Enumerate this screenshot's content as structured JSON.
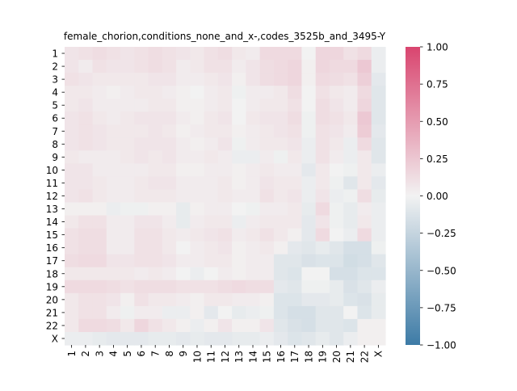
{
  "chart_data": {
    "type": "heatmap",
    "title": "female_chorion,conditions_none_and_x-,codes_3525b_and_3495-Y",
    "xlabel": "",
    "ylabel": "",
    "labels": [
      "1",
      "2",
      "3",
      "4",
      "5",
      "6",
      "7",
      "8",
      "9",
      "10",
      "11",
      "12",
      "13",
      "14",
      "15",
      "16",
      "17",
      "18",
      "19",
      "20",
      "21",
      "22",
      "X"
    ],
    "colorbar": {
      "vmin": -1.0,
      "vmax": 1.0,
      "ticks": [
        "1.00",
        "0.75",
        "0.50",
        "0.25",
        "0.00",
        "−0.25",
        "−0.50",
        "−0.75",
        "−1.00"
      ],
      "tick_values": [
        1.0,
        0.75,
        0.5,
        0.25,
        0.0,
        -0.25,
        -0.5,
        -0.75,
        -1.0
      ],
      "color_low": "#3d7ba6",
      "color_mid": "#f2f2f2",
      "color_high": "#d9456f"
    },
    "values": [
      [
        0.08,
        0.1,
        0.12,
        0.1,
        0.08,
        0.1,
        0.12,
        0.1,
        0.08,
        0.06,
        0.1,
        0.12,
        0.06,
        0.04,
        0.14,
        0.14,
        0.14,
        0.0,
        0.16,
        0.16,
        0.1,
        0.14,
        -0.04
      ],
      [
        0.08,
        0.04,
        0.1,
        0.08,
        0.08,
        0.1,
        0.12,
        0.1,
        0.04,
        0.06,
        0.1,
        0.1,
        0.04,
        0.08,
        0.12,
        0.14,
        0.16,
        0.02,
        0.16,
        0.14,
        0.14,
        0.24,
        -0.04
      ],
      [
        0.1,
        0.08,
        0.06,
        0.06,
        0.06,
        0.06,
        0.08,
        0.08,
        0.04,
        0.04,
        0.06,
        0.08,
        0.02,
        0.08,
        0.12,
        0.14,
        0.16,
        0.02,
        0.14,
        0.12,
        0.1,
        0.2,
        -0.08
      ],
      [
        0.06,
        0.06,
        0.04,
        0.02,
        0.04,
        0.06,
        0.06,
        0.04,
        0.02,
        0.0,
        0.04,
        0.06,
        -0.02,
        0.04,
        0.04,
        0.06,
        0.12,
        0.0,
        0.1,
        0.06,
        0.04,
        0.14,
        -0.1
      ],
      [
        0.06,
        0.08,
        0.04,
        0.04,
        0.04,
        0.04,
        0.06,
        0.06,
        0.02,
        0.02,
        0.04,
        0.06,
        0.0,
        0.04,
        0.06,
        0.06,
        0.1,
        0.0,
        0.12,
        0.08,
        0.04,
        0.16,
        -0.1
      ],
      [
        0.08,
        0.1,
        0.06,
        0.04,
        0.06,
        0.08,
        0.08,
        0.08,
        0.04,
        0.02,
        0.06,
        0.08,
        0.0,
        0.06,
        0.08,
        0.08,
        0.12,
        -0.02,
        0.12,
        0.1,
        0.06,
        0.24,
        -0.1
      ],
      [
        0.08,
        0.1,
        0.08,
        0.06,
        0.06,
        0.06,
        0.08,
        0.06,
        0.02,
        0.04,
        0.06,
        0.06,
        0.02,
        0.04,
        0.06,
        0.08,
        0.1,
        -0.02,
        0.1,
        0.08,
        0.04,
        0.22,
        -0.08
      ],
      [
        0.08,
        0.1,
        0.08,
        0.06,
        0.06,
        0.08,
        0.08,
        0.08,
        0.04,
        0.02,
        0.04,
        0.08,
        -0.02,
        0.04,
        0.06,
        0.06,
        0.08,
        -0.04,
        0.1,
        0.06,
        -0.04,
        0.14,
        -0.1
      ],
      [
        0.06,
        0.04,
        0.04,
        0.04,
        0.06,
        0.08,
        0.06,
        0.08,
        0.04,
        0.04,
        0.06,
        0.04,
        -0.04,
        -0.04,
        0.04,
        -0.02,
        0.06,
        -0.04,
        0.1,
        0.04,
        -0.04,
        0.06,
        -0.1
      ],
      [
        0.08,
        0.08,
        0.04,
        0.04,
        0.04,
        0.04,
        0.06,
        0.06,
        0.02,
        0.02,
        0.04,
        0.04,
        0.02,
        0.04,
        0.06,
        0.04,
        0.04,
        -0.08,
        0.06,
        0.0,
        -0.02,
        0.06,
        -0.04
      ],
      [
        0.08,
        0.08,
        0.06,
        0.04,
        0.04,
        0.06,
        0.08,
        0.08,
        0.04,
        0.04,
        0.04,
        0.06,
        0.02,
        0.04,
        0.08,
        0.06,
        0.06,
        -0.04,
        0.06,
        -0.02,
        -0.1,
        0.06,
        -0.08
      ],
      [
        0.08,
        0.1,
        0.06,
        0.04,
        0.04,
        0.06,
        0.06,
        0.06,
        0.04,
        0.04,
        0.04,
        0.06,
        0.04,
        0.04,
        0.1,
        0.06,
        0.08,
        -0.04,
        0.08,
        -0.04,
        -0.02,
        0.12,
        -0.06
      ],
      [
        0.02,
        0.02,
        0.02,
        -0.04,
        -0.02,
        -0.02,
        0.02,
        0.02,
        -0.06,
        0.02,
        0.04,
        0.04,
        0.0,
        -0.02,
        0.04,
        0.04,
        0.06,
        -0.06,
        0.14,
        -0.02,
        -0.06,
        0.04,
        -0.04
      ],
      [
        0.06,
        0.1,
        0.1,
        0.04,
        0.04,
        0.08,
        0.08,
        0.04,
        -0.06,
        0.04,
        0.06,
        0.06,
        -0.04,
        0.04,
        0.06,
        0.06,
        0.06,
        -0.08,
        0.08,
        -0.02,
        -0.06,
        0.06,
        -0.04
      ],
      [
        0.1,
        0.12,
        0.12,
        0.04,
        0.04,
        0.1,
        0.1,
        0.06,
        0.04,
        0.06,
        0.08,
        0.1,
        0.04,
        0.06,
        0.1,
        0.06,
        0.02,
        -0.08,
        0.14,
        0.0,
        -0.04,
        0.14,
        -0.04
      ],
      [
        0.1,
        0.12,
        0.12,
        0.04,
        0.04,
        0.1,
        0.1,
        0.06,
        0.0,
        0.04,
        0.06,
        0.08,
        0.02,
        0.04,
        0.06,
        0.02,
        -0.08,
        -0.1,
        -0.06,
        -0.1,
        -0.16,
        -0.16,
        -0.02
      ],
      [
        0.12,
        0.14,
        0.14,
        0.08,
        0.08,
        0.1,
        0.1,
        0.08,
        0.04,
        0.04,
        0.06,
        0.06,
        0.02,
        0.04,
        0.04,
        -0.1,
        -0.1,
        -0.14,
        -0.12,
        -0.12,
        -0.18,
        -0.16,
        -0.1
      ],
      [
        0.06,
        0.06,
        0.06,
        0.06,
        0.06,
        0.04,
        0.06,
        0.04,
        0.0,
        -0.04,
        0.0,
        0.04,
        0.02,
        0.04,
        0.04,
        -0.1,
        -0.12,
        0.0,
        0.0,
        -0.16,
        -0.16,
        -0.12,
        -0.12
      ],
      [
        0.14,
        0.14,
        0.14,
        0.12,
        0.1,
        0.12,
        0.12,
        0.12,
        0.1,
        0.1,
        0.1,
        0.12,
        0.14,
        0.12,
        0.12,
        -0.08,
        -0.1,
        -0.02,
        -0.02,
        -0.06,
        -0.14,
        -0.1,
        -0.04
      ],
      [
        0.06,
        0.1,
        0.1,
        0.08,
        0.02,
        0.1,
        0.06,
        0.06,
        0.04,
        0.02,
        0.06,
        0.06,
        0.04,
        0.04,
        0.02,
        -0.12,
        -0.12,
        -0.08,
        -0.08,
        -0.06,
        -0.12,
        -0.14,
        -0.06
      ],
      [
        0.06,
        0.1,
        0.1,
        0.04,
        -0.02,
        0.04,
        0.04,
        -0.04,
        -0.04,
        0.02,
        -0.08,
        0.0,
        -0.06,
        -0.04,
        -0.02,
        -0.12,
        -0.16,
        -0.16,
        -0.1,
        -0.1,
        0.0,
        -0.12,
        -0.06
      ],
      [
        0.06,
        0.14,
        0.14,
        0.12,
        0.06,
        0.16,
        0.1,
        0.06,
        0.02,
        -0.04,
        0.02,
        0.08,
        0.02,
        0.02,
        0.08,
        -0.1,
        -0.14,
        -0.16,
        -0.1,
        -0.1,
        -0.12,
        0.02,
        0.02
      ],
      [
        -0.04,
        -0.04,
        -0.06,
        -0.08,
        -0.08,
        -0.08,
        -0.06,
        -0.06,
        -0.08,
        -0.06,
        -0.08,
        -0.08,
        -0.06,
        -0.06,
        -0.04,
        -0.08,
        -0.12,
        -0.1,
        -0.06,
        -0.1,
        -0.04,
        0.02,
        0.02
      ]
    ]
  }
}
